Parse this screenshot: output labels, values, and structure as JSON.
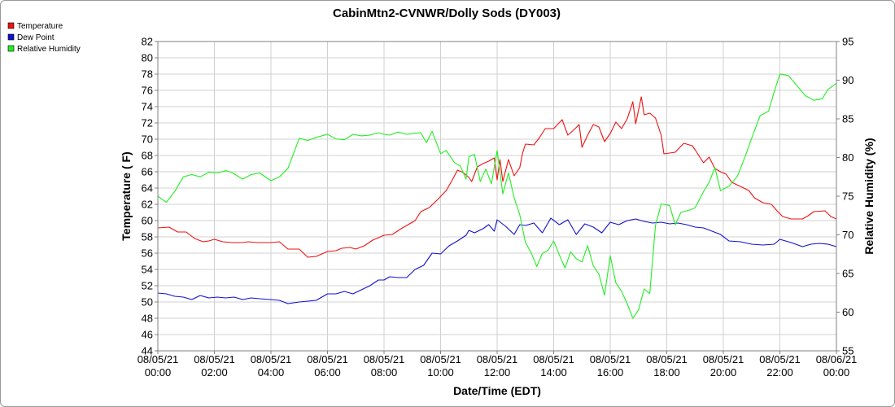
{
  "chart_data": {
    "type": "line",
    "title": "CabinMtn2-CVNWR/Dolly Sods (DY003)",
    "xlabel": "Date/Time (EDT)",
    "ylabel": "Temperature ( F)",
    "y2label": "Relative Humidity (%)",
    "ylim": [
      44,
      82
    ],
    "y2lim": [
      55,
      95
    ],
    "xlim": [
      "08/05/21 00:00",
      "08/06/21 00:00"
    ],
    "grid": true,
    "legend_position": "top-left",
    "x_ticks": [
      {
        "date": "08/05/21",
        "time": "00:00",
        "hour": 0
      },
      {
        "date": "08/05/21",
        "time": "02:00",
        "hour": 2
      },
      {
        "date": "08/05/21",
        "time": "04:00",
        "hour": 4
      },
      {
        "date": "08/05/21",
        "time": "06:00",
        "hour": 6
      },
      {
        "date": "08/05/21",
        "time": "08:00",
        "hour": 8
      },
      {
        "date": "08/05/21",
        "time": "10:00",
        "hour": 10
      },
      {
        "date": "08/05/21",
        "time": "12:00",
        "hour": 12
      },
      {
        "date": "08/05/21",
        "time": "14:00",
        "hour": 14
      },
      {
        "date": "08/05/21",
        "time": "16:00",
        "hour": 16
      },
      {
        "date": "08/05/21",
        "time": "18:00",
        "hour": 18
      },
      {
        "date": "08/05/21",
        "time": "20:00",
        "hour": 20
      },
      {
        "date": "08/05/21",
        "time": "22:00",
        "hour": 22
      },
      {
        "date": "08/06/21",
        "time": "00:00",
        "hour": 24
      }
    ],
    "y_ticks": [
      44,
      46,
      48,
      50,
      52,
      54,
      56,
      58,
      60,
      62,
      64,
      66,
      68,
      70,
      72,
      74,
      76,
      78,
      80,
      82
    ],
    "y2_ticks": [
      55,
      60,
      65,
      70,
      75,
      80,
      85,
      90,
      95
    ],
    "series": [
      {
        "name": "Temperature",
        "color": "#ee1111",
        "axis": "left",
        "points": [
          [
            0,
            59.1
          ],
          [
            0.4,
            59.2
          ],
          [
            0.7,
            58.6
          ],
          [
            1.0,
            58.6
          ],
          [
            1.3,
            57.8
          ],
          [
            1.6,
            57.4
          ],
          [
            1.8,
            57.5
          ],
          [
            2.0,
            57.7
          ],
          [
            2.3,
            57.4
          ],
          [
            2.6,
            57.3
          ],
          [
            3.0,
            57.3
          ],
          [
            3.2,
            57.4
          ],
          [
            3.5,
            57.3
          ],
          [
            4.0,
            57.3
          ],
          [
            4.3,
            57.4
          ],
          [
            4.6,
            56.5
          ],
          [
            5.0,
            56.5
          ],
          [
            5.3,
            55.5
          ],
          [
            5.6,
            55.6
          ],
          [
            6.0,
            56.2
          ],
          [
            6.3,
            56.3
          ],
          [
            6.5,
            56.6
          ],
          [
            6.8,
            56.7
          ],
          [
            7.0,
            56.5
          ],
          [
            7.3,
            56.9
          ],
          [
            7.6,
            57.6
          ],
          [
            8.0,
            58.2
          ],
          [
            8.3,
            58.3
          ],
          [
            8.6,
            59.0
          ],
          [
            8.9,
            59.6
          ],
          [
            9.1,
            60.0
          ],
          [
            9.3,
            61.1
          ],
          [
            9.6,
            61.6
          ],
          [
            9.9,
            62.6
          ],
          [
            10.2,
            63.7
          ],
          [
            10.4,
            64.9
          ],
          [
            10.6,
            66.2
          ],
          [
            10.8,
            65.9
          ],
          [
            11.0,
            65.3
          ],
          [
            11.1,
            64.8
          ],
          [
            11.3,
            66.6
          ],
          [
            11.5,
            67.0
          ],
          [
            11.7,
            67.3
          ],
          [
            11.9,
            67.7
          ],
          [
            12.0,
            65.0
          ],
          [
            12.1,
            67.5
          ],
          [
            12.2,
            64.8
          ],
          [
            12.4,
            67.5
          ],
          [
            12.6,
            65.5
          ],
          [
            12.8,
            66.5
          ],
          [
            12.9,
            68.3
          ],
          [
            13.0,
            69.4
          ],
          [
            13.3,
            69.3
          ],
          [
            13.5,
            70.2
          ],
          [
            13.7,
            71.3
          ],
          [
            14.0,
            71.3
          ],
          [
            14.3,
            72.4
          ],
          [
            14.5,
            70.5
          ],
          [
            14.7,
            71.1
          ],
          [
            14.9,
            71.8
          ],
          [
            15.0,
            69.0
          ],
          [
            15.2,
            70.5
          ],
          [
            15.4,
            71.8
          ],
          [
            15.6,
            71.5
          ],
          [
            15.8,
            69.7
          ],
          [
            16.0,
            70.7
          ],
          [
            16.2,
            72.1
          ],
          [
            16.4,
            71.3
          ],
          [
            16.6,
            72.5
          ],
          [
            16.8,
            74.6
          ],
          [
            16.9,
            71.9
          ],
          [
            17.1,
            75.2
          ],
          [
            17.2,
            73.0
          ],
          [
            17.4,
            73.2
          ],
          [
            17.6,
            72.6
          ],
          [
            17.8,
            70.5
          ],
          [
            17.9,
            68.2
          ],
          [
            18.3,
            68.4
          ],
          [
            18.6,
            69.5
          ],
          [
            18.9,
            69.2
          ],
          [
            19.0,
            68.7
          ],
          [
            19.3,
            67.1
          ],
          [
            19.5,
            67.8
          ],
          [
            19.7,
            66.4
          ],
          [
            19.9,
            66.0
          ],
          [
            20.1,
            65.7
          ],
          [
            20.3,
            64.7
          ],
          [
            20.6,
            64.2
          ],
          [
            20.9,
            63.7
          ],
          [
            21.1,
            62.8
          ],
          [
            21.4,
            62.2
          ],
          [
            21.7,
            62.0
          ],
          [
            21.9,
            61.2
          ],
          [
            22.1,
            60.5
          ],
          [
            22.4,
            60.2
          ],
          [
            22.8,
            60.2
          ],
          [
            23.0,
            60.6
          ],
          [
            23.2,
            61.1
          ],
          [
            23.6,
            61.2
          ],
          [
            23.8,
            60.5
          ],
          [
            24.0,
            60.2
          ]
        ]
      },
      {
        "name": "Dew Point",
        "color": "#1111cc",
        "axis": "left",
        "points": [
          [
            0,
            51.1
          ],
          [
            0.3,
            51.0
          ],
          [
            0.6,
            50.7
          ],
          [
            0.9,
            50.6
          ],
          [
            1.2,
            50.3
          ],
          [
            1.5,
            50.8
          ],
          [
            1.8,
            50.5
          ],
          [
            2.1,
            50.6
          ],
          [
            2.4,
            50.5
          ],
          [
            2.7,
            50.6
          ],
          [
            3.0,
            50.3
          ],
          [
            3.3,
            50.5
          ],
          [
            3.6,
            50.4
          ],
          [
            4.0,
            50.3
          ],
          [
            4.3,
            50.2
          ],
          [
            4.6,
            49.8
          ],
          [
            5.0,
            50.0
          ],
          [
            5.3,
            50.1
          ],
          [
            5.6,
            50.2
          ],
          [
            6.0,
            51.0
          ],
          [
            6.3,
            51.0
          ],
          [
            6.6,
            51.3
          ],
          [
            6.9,
            51.0
          ],
          [
            7.2,
            51.5
          ],
          [
            7.5,
            52.0
          ],
          [
            7.8,
            52.7
          ],
          [
            8.0,
            52.7
          ],
          [
            8.2,
            53.1
          ],
          [
            8.5,
            53.0
          ],
          [
            8.8,
            53.0
          ],
          [
            9.1,
            54.0
          ],
          [
            9.4,
            54.5
          ],
          [
            9.7,
            56.0
          ],
          [
            10.0,
            55.9
          ],
          [
            10.3,
            56.9
          ],
          [
            10.6,
            57.5
          ],
          [
            10.9,
            58.2
          ],
          [
            11.0,
            58.8
          ],
          [
            11.2,
            58.5
          ],
          [
            11.5,
            59.0
          ],
          [
            11.7,
            59.5
          ],
          [
            11.9,
            58.7
          ],
          [
            12.0,
            60.1
          ],
          [
            12.3,
            59.3
          ],
          [
            12.6,
            58.3
          ],
          [
            12.8,
            59.5
          ],
          [
            13.0,
            59.4
          ],
          [
            13.3,
            59.7
          ],
          [
            13.6,
            58.5
          ],
          [
            13.9,
            60.3
          ],
          [
            14.2,
            59.5
          ],
          [
            14.5,
            60.1
          ],
          [
            14.8,
            58.3
          ],
          [
            15.1,
            59.6
          ],
          [
            15.4,
            59.2
          ],
          [
            15.7,
            58.5
          ],
          [
            16.0,
            59.8
          ],
          [
            16.3,
            59.5
          ],
          [
            16.6,
            60.0
          ],
          [
            16.9,
            60.2
          ],
          [
            17.2,
            59.9
          ],
          [
            17.5,
            59.7
          ],
          [
            17.8,
            59.8
          ],
          [
            18.1,
            59.6
          ],
          [
            18.4,
            59.7
          ],
          [
            18.7,
            59.5
          ],
          [
            19.0,
            59.2
          ],
          [
            19.3,
            59.1
          ],
          [
            19.6,
            58.7
          ],
          [
            19.9,
            58.3
          ],
          [
            20.2,
            57.5
          ],
          [
            20.6,
            57.4
          ],
          [
            21.0,
            57.1
          ],
          [
            21.4,
            57.0
          ],
          [
            21.8,
            57.1
          ],
          [
            22.0,
            57.7
          ],
          [
            22.4,
            57.3
          ],
          [
            22.8,
            56.8
          ],
          [
            23.1,
            57.1
          ],
          [
            23.4,
            57.2
          ],
          [
            23.7,
            57.1
          ],
          [
            24.0,
            56.8
          ]
        ]
      },
      {
        "name": "Relative Humidity",
        "color": "#22ee22",
        "axis": "right",
        "points": [
          [
            0,
            75.0
          ],
          [
            0.3,
            74.2
          ],
          [
            0.6,
            75.6
          ],
          [
            0.9,
            77.5
          ],
          [
            1.2,
            77.8
          ],
          [
            1.5,
            77.5
          ],
          [
            1.8,
            78.1
          ],
          [
            2.1,
            78.0
          ],
          [
            2.4,
            78.3
          ],
          [
            2.6,
            78.1
          ],
          [
            3.0,
            77.2
          ],
          [
            3.3,
            77.8
          ],
          [
            3.6,
            78.0
          ],
          [
            4.0,
            77.0
          ],
          [
            4.3,
            77.5
          ],
          [
            4.6,
            78.6
          ],
          [
            5.0,
            82.5
          ],
          [
            5.3,
            82.2
          ],
          [
            5.6,
            82.6
          ],
          [
            6.0,
            83.0
          ],
          [
            6.3,
            82.4
          ],
          [
            6.6,
            82.3
          ],
          [
            6.9,
            83.0
          ],
          [
            7.2,
            82.8
          ],
          [
            7.5,
            82.9
          ],
          [
            7.8,
            83.2
          ],
          [
            8.0,
            83.0
          ],
          [
            8.2,
            82.9
          ],
          [
            8.5,
            83.3
          ],
          [
            8.8,
            83.0
          ],
          [
            9.0,
            83.1
          ],
          [
            9.3,
            83.2
          ],
          [
            9.5,
            81.9
          ],
          [
            9.7,
            83.4
          ],
          [
            10.0,
            80.5
          ],
          [
            10.2,
            80.9
          ],
          [
            10.5,
            79.3
          ],
          [
            10.7,
            78.9
          ],
          [
            10.9,
            77.2
          ],
          [
            11.0,
            80.1
          ],
          [
            11.2,
            80.4
          ],
          [
            11.4,
            76.9
          ],
          [
            11.6,
            78.5
          ],
          [
            11.8,
            76.6
          ],
          [
            12.0,
            80.9
          ],
          [
            12.2,
            75.3
          ],
          [
            12.4,
            78.0
          ],
          [
            12.6,
            74.8
          ],
          [
            12.8,
            72.6
          ],
          [
            13.0,
            69.0
          ],
          [
            13.2,
            67.7
          ],
          [
            13.4,
            65.9
          ],
          [
            13.6,
            67.6
          ],
          [
            13.8,
            68.0
          ],
          [
            14.0,
            69.2
          ],
          [
            14.2,
            67.4
          ],
          [
            14.4,
            65.7
          ],
          [
            14.6,
            67.8
          ],
          [
            14.8,
            66.9
          ],
          [
            15.0,
            66.5
          ],
          [
            15.2,
            68.6
          ],
          [
            15.4,
            66.0
          ],
          [
            15.6,
            64.9
          ],
          [
            15.8,
            62.2
          ],
          [
            16.0,
            67.3
          ],
          [
            16.2,
            63.8
          ],
          [
            16.4,
            62.7
          ],
          [
            16.6,
            61.1
          ],
          [
            16.8,
            59.2
          ],
          [
            17.0,
            60.3
          ],
          [
            17.2,
            63.0
          ],
          [
            17.4,
            62.4
          ],
          [
            17.6,
            71.2
          ],
          [
            17.8,
            74.0
          ],
          [
            18.1,
            73.8
          ],
          [
            18.3,
            71.3
          ],
          [
            18.5,
            72.9
          ],
          [
            18.8,
            73.2
          ],
          [
            19.0,
            73.5
          ],
          [
            19.3,
            75.6
          ],
          [
            19.5,
            76.8
          ],
          [
            19.7,
            78.7
          ],
          [
            19.9,
            75.7
          ],
          [
            20.2,
            76.3
          ],
          [
            20.5,
            77.6
          ],
          [
            20.8,
            80.4
          ],
          [
            21.0,
            82.5
          ],
          [
            21.3,
            85.4
          ],
          [
            21.6,
            86.0
          ],
          [
            21.8,
            88.5
          ],
          [
            22.0,
            90.8
          ],
          [
            22.3,
            90.6
          ],
          [
            22.6,
            89.3
          ],
          [
            22.9,
            88.0
          ],
          [
            23.2,
            87.4
          ],
          [
            23.5,
            87.6
          ],
          [
            23.7,
            88.8
          ],
          [
            24.0,
            89.6
          ]
        ]
      }
    ]
  }
}
